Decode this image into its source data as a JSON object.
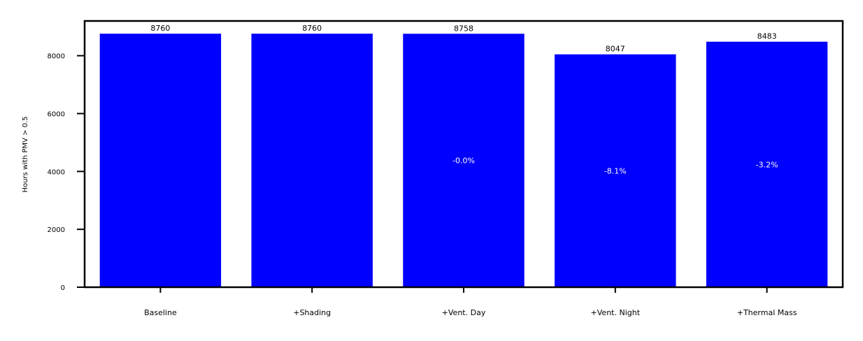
{
  "chart_data": {
    "type": "bar",
    "title": "",
    "xlabel": "",
    "ylabel": "Hours with PMV > 0.5",
    "categories": [
      "Baseline",
      "+Shading",
      "+Vent. Day",
      "+Vent. Night",
      "+Thermal Mass"
    ],
    "values": [
      8760,
      8760,
      8758,
      8047,
      8483
    ],
    "value_labels": [
      "8760",
      "8760",
      "8758",
      "8047",
      "8483"
    ],
    "change_labels": [
      "",
      "",
      "-0.0%",
      "-8.1%",
      "-3.2%"
    ],
    "ylim": [
      0,
      9200
    ],
    "yticks": [
      0,
      2000,
      4000,
      6000,
      8000
    ],
    "ytick_labels": [
      "0",
      "2000",
      "4000",
      "6000",
      "8000"
    ],
    "grid": false,
    "legend": "none",
    "colors": {
      "bar": "#0000ff",
      "value_label": "#000000",
      "change_label": "#ffffff",
      "axis": "#000000"
    }
  }
}
